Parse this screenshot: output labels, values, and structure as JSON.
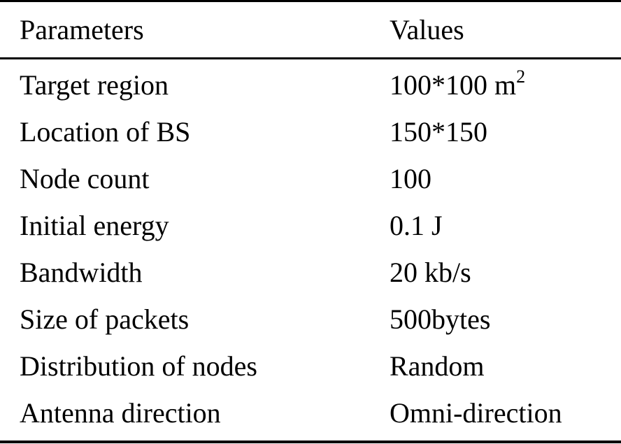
{
  "table": {
    "header": {
      "parameter": "Parameters",
      "value": "Values"
    },
    "rows": [
      {
        "parameter": "Target region",
        "value": "100*100 m",
        "value_sup": "2"
      },
      {
        "parameter": "Location of BS",
        "value": "150*150"
      },
      {
        "parameter": "Node count",
        "value": "100"
      },
      {
        "parameter": "Initial energy",
        "value": "0.1 J"
      },
      {
        "parameter": "Bandwidth",
        "value": "20 kb/s"
      },
      {
        "parameter": "Size of packets",
        "value": "500bytes"
      },
      {
        "parameter": "Distribution of nodes",
        "value": "Random"
      },
      {
        "parameter": "Antenna direction",
        "value": "Omni-direction"
      }
    ]
  }
}
